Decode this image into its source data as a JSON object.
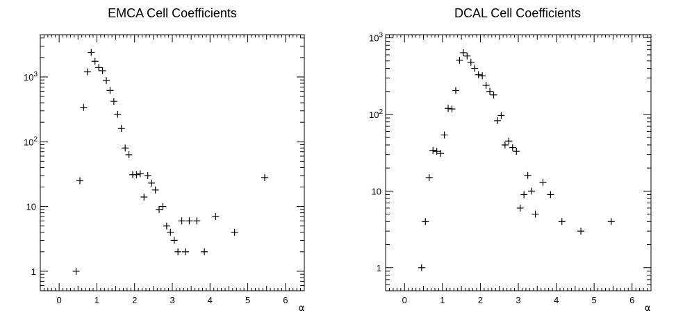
{
  "chart_data": [
    {
      "type": "scatter",
      "title": "EMCA Cell Coefficients",
      "xlabel": "α",
      "ylabel": "",
      "xlim": [
        -0.5,
        6.5
      ],
      "ylim": [
        0.5,
        4500
      ],
      "yscale": "log",
      "grid": false,
      "legend": "none",
      "x_ticks": [
        0,
        1,
        2,
        3,
        4,
        5,
        6
      ],
      "y_ticks": [
        1,
        10,
        100,
        1000
      ],
      "y_tick_labels": [
        "1",
        "10",
        "10^2",
        "10^3"
      ],
      "points": [
        {
          "x": 0.45,
          "y": 1
        },
        {
          "x": 0.55,
          "y": 25
        },
        {
          "x": 0.65,
          "y": 340
        },
        {
          "x": 0.75,
          "y": 1200
        },
        {
          "x": 0.85,
          "y": 2400
        },
        {
          "x": 0.95,
          "y": 1750
        },
        {
          "x": 1.05,
          "y": 1400
        },
        {
          "x": 1.15,
          "y": 1250
        },
        {
          "x": 1.25,
          "y": 880
        },
        {
          "x": 1.35,
          "y": 620
        },
        {
          "x": 1.45,
          "y": 420
        },
        {
          "x": 1.55,
          "y": 265
        },
        {
          "x": 1.65,
          "y": 160
        },
        {
          "x": 1.75,
          "y": 80
        },
        {
          "x": 1.85,
          "y": 63
        },
        {
          "x": 1.95,
          "y": 31
        },
        {
          "x": 2.05,
          "y": 31
        },
        {
          "x": 2.15,
          "y": 32
        },
        {
          "x": 2.25,
          "y": 14
        },
        {
          "x": 2.35,
          "y": 30
        },
        {
          "x": 2.45,
          "y": 23
        },
        {
          "x": 2.55,
          "y": 18
        },
        {
          "x": 2.65,
          "y": 9
        },
        {
          "x": 2.75,
          "y": 10
        },
        {
          "x": 2.85,
          "y": 5
        },
        {
          "x": 2.95,
          "y": 4
        },
        {
          "x": 3.05,
          "y": 3
        },
        {
          "x": 3.15,
          "y": 2
        },
        {
          "x": 3.25,
          "y": 6
        },
        {
          "x": 3.35,
          "y": 2
        },
        {
          "x": 3.45,
          "y": 6
        },
        {
          "x": 3.65,
          "y": 6
        },
        {
          "x": 3.85,
          "y": 2
        },
        {
          "x": 4.15,
          "y": 7
        },
        {
          "x": 4.65,
          "y": 4
        },
        {
          "x": 5.45,
          "y": 28
        }
      ]
    },
    {
      "type": "scatter",
      "title": "DCAL Cell Coefficients",
      "xlabel": "α",
      "ylabel": "",
      "xlim": [
        -0.5,
        6.5
      ],
      "ylim": [
        0.5,
        1100
      ],
      "yscale": "log",
      "grid": false,
      "legend": "none",
      "x_ticks": [
        0,
        1,
        2,
        3,
        4,
        5,
        6
      ],
      "y_ticks": [
        1,
        10,
        100,
        1000
      ],
      "y_tick_labels": [
        "1",
        "10",
        "10^2",
        "10^3"
      ],
      "points": [
        {
          "x": 0.45,
          "y": 1
        },
        {
          "x": 0.55,
          "y": 4
        },
        {
          "x": 0.65,
          "y": 15
        },
        {
          "x": 0.75,
          "y": 34
        },
        {
          "x": 0.85,
          "y": 33
        },
        {
          "x": 0.95,
          "y": 31
        },
        {
          "x": 1.05,
          "y": 54
        },
        {
          "x": 1.15,
          "y": 120
        },
        {
          "x": 1.25,
          "y": 118
        },
        {
          "x": 1.35,
          "y": 205
        },
        {
          "x": 1.45,
          "y": 510
        },
        {
          "x": 1.55,
          "y": 640
        },
        {
          "x": 1.65,
          "y": 580
        },
        {
          "x": 1.75,
          "y": 480
        },
        {
          "x": 1.85,
          "y": 400
        },
        {
          "x": 1.95,
          "y": 330
        },
        {
          "x": 2.05,
          "y": 320
        },
        {
          "x": 2.15,
          "y": 240
        },
        {
          "x": 2.25,
          "y": 200
        },
        {
          "x": 2.35,
          "y": 180
        },
        {
          "x": 2.45,
          "y": 83
        },
        {
          "x": 2.55,
          "y": 97
        },
        {
          "x": 2.65,
          "y": 40
        },
        {
          "x": 2.75,
          "y": 45
        },
        {
          "x": 2.85,
          "y": 37
        },
        {
          "x": 2.95,
          "y": 33
        },
        {
          "x": 3.05,
          "y": 6
        },
        {
          "x": 3.15,
          "y": 9
        },
        {
          "x": 3.25,
          "y": 16
        },
        {
          "x": 3.35,
          "y": 10
        },
        {
          "x": 3.45,
          "y": 5
        },
        {
          "x": 3.65,
          "y": 13
        },
        {
          "x": 3.85,
          "y": 9
        },
        {
          "x": 4.15,
          "y": 4
        },
        {
          "x": 4.65,
          "y": 3
        },
        {
          "x": 5.45,
          "y": 4
        }
      ]
    }
  ]
}
